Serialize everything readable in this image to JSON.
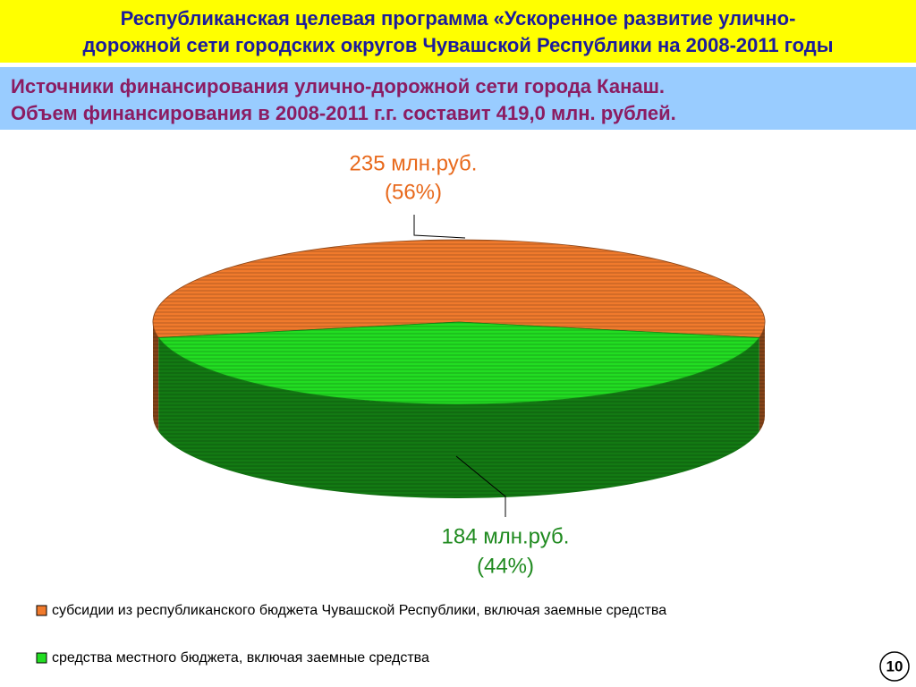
{
  "header": {
    "title": [
      "Республиканская целевая программа «Ускоренное развитие улично-",
      "дорожной сети городских округов Чувашской Республики на 2008-2011 годы"
    ]
  },
  "subheader": {
    "lines": [
      "Источники финансирования улично-дорожной сети города Канаш.",
      "Объем финансирования в 2008-2011 г.г. составит 419,0 млн. рублей."
    ]
  },
  "chart_data": {
    "type": "pie",
    "categories": [
      "субсидии из республиканского бюджета Чувашской Республики, включая заемные средства",
      "средства местного бюджета, включая заемные средства"
    ],
    "values": [
      235,
      184
    ],
    "value_labels": [
      "235 млн.руб.",
      "184 млн.руб."
    ],
    "percent_labels": [
      "(56%)",
      "(44%)"
    ],
    "colors": [
      "#f07a2c",
      "#22dd22"
    ],
    "label_colors": [
      "#e8691c",
      "#1f8a1f"
    ]
  },
  "page_number": 10
}
